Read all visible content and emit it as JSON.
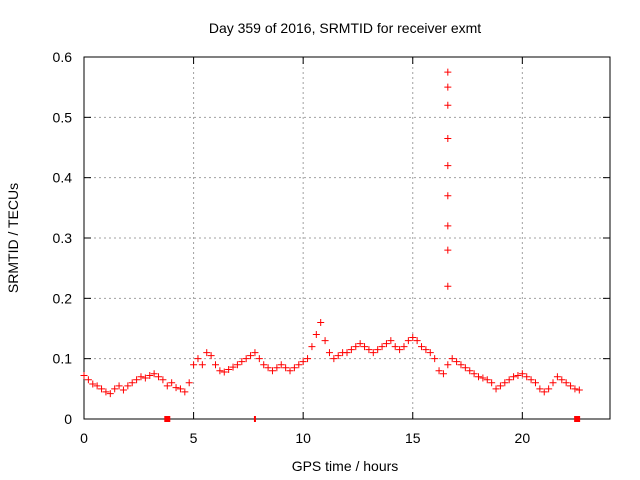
{
  "chart_data": {
    "type": "scatter",
    "title": "Day 359 of 2016, SRMTID for receiver exmt",
    "xlabel": "GPS time / hours",
    "ylabel": "SRMTID / TECUs",
    "xlim": [
      0,
      24
    ],
    "ylim": [
      0,
      0.6
    ],
    "xticks": [
      0,
      5,
      10,
      15,
      20
    ],
    "yticks": [
      0,
      0.1,
      0.2,
      0.3,
      0.4,
      0.5,
      0.6
    ],
    "grid": true,
    "marker": "+",
    "series": [
      {
        "name": "SRMTID",
        "color": "#ff0000",
        "points": [
          [
            0.0,
            0.072
          ],
          [
            0.2,
            0.065
          ],
          [
            0.4,
            0.058
          ],
          [
            0.6,
            0.055
          ],
          [
            0.8,
            0.05
          ],
          [
            1.0,
            0.045
          ],
          [
            1.2,
            0.042
          ],
          [
            1.4,
            0.05
          ],
          [
            1.6,
            0.055
          ],
          [
            1.8,
            0.048
          ],
          [
            2.0,
            0.055
          ],
          [
            2.2,
            0.06
          ],
          [
            2.4,
            0.065
          ],
          [
            2.6,
            0.07
          ],
          [
            2.8,
            0.068
          ],
          [
            3.0,
            0.072
          ],
          [
            3.2,
            0.075
          ],
          [
            3.4,
            0.07
          ],
          [
            3.6,
            0.065
          ],
          [
            3.8,
            0.055
          ],
          [
            4.0,
            0.06
          ],
          [
            4.2,
            0.052
          ],
          [
            4.4,
            0.05
          ],
          [
            4.6,
            0.045
          ],
          [
            4.8,
            0.06
          ],
          [
            5.0,
            0.09
          ],
          [
            5.2,
            0.1
          ],
          [
            5.4,
            0.09
          ],
          [
            5.6,
            0.11
          ],
          [
            5.8,
            0.105
          ],
          [
            6.0,
            0.09
          ],
          [
            6.2,
            0.08
          ],
          [
            6.4,
            0.078
          ],
          [
            6.6,
            0.082
          ],
          [
            6.8,
            0.086
          ],
          [
            7.0,
            0.09
          ],
          [
            7.2,
            0.095
          ],
          [
            7.4,
            0.1
          ],
          [
            7.6,
            0.105
          ],
          [
            7.8,
            0.11
          ],
          [
            8.0,
            0.1
          ],
          [
            8.2,
            0.09
          ],
          [
            8.4,
            0.085
          ],
          [
            8.6,
            0.08
          ],
          [
            8.8,
            0.085
          ],
          [
            9.0,
            0.09
          ],
          [
            9.2,
            0.085
          ],
          [
            9.4,
            0.08
          ],
          [
            9.6,
            0.085
          ],
          [
            9.8,
            0.09
          ],
          [
            10.0,
            0.095
          ],
          [
            10.2,
            0.1
          ],
          [
            10.4,
            0.12
          ],
          [
            10.6,
            0.14
          ],
          [
            10.8,
            0.16
          ],
          [
            11.0,
            0.13
          ],
          [
            11.2,
            0.11
          ],
          [
            11.4,
            0.1
          ],
          [
            11.6,
            0.105
          ],
          [
            11.8,
            0.11
          ],
          [
            12.0,
            0.11
          ],
          [
            12.2,
            0.115
          ],
          [
            12.4,
            0.12
          ],
          [
            12.6,
            0.125
          ],
          [
            12.8,
            0.12
          ],
          [
            13.0,
            0.115
          ],
          [
            13.2,
            0.11
          ],
          [
            13.4,
            0.115
          ],
          [
            13.6,
            0.12
          ],
          [
            13.8,
            0.125
          ],
          [
            14.0,
            0.13
          ],
          [
            14.2,
            0.12
          ],
          [
            14.4,
            0.115
          ],
          [
            14.6,
            0.12
          ],
          [
            14.8,
            0.13
          ],
          [
            15.0,
            0.135
          ],
          [
            15.2,
            0.13
          ],
          [
            15.4,
            0.12
          ],
          [
            15.6,
            0.115
          ],
          [
            15.8,
            0.11
          ],
          [
            16.0,
            0.1
          ],
          [
            16.2,
            0.08
          ],
          [
            16.4,
            0.075
          ],
          [
            16.6,
            0.09
          ],
          [
            16.6,
            0.22
          ],
          [
            16.6,
            0.28
          ],
          [
            16.6,
            0.32
          ],
          [
            16.6,
            0.37
          ],
          [
            16.6,
            0.42
          ],
          [
            16.6,
            0.465
          ],
          [
            16.6,
            0.52
          ],
          [
            16.6,
            0.55
          ],
          [
            16.6,
            0.575
          ],
          [
            16.8,
            0.1
          ],
          [
            17.0,
            0.095
          ],
          [
            17.2,
            0.09
          ],
          [
            17.4,
            0.085
          ],
          [
            17.6,
            0.08
          ],
          [
            17.8,
            0.075
          ],
          [
            18.0,
            0.07
          ],
          [
            18.2,
            0.068
          ],
          [
            18.4,
            0.065
          ],
          [
            18.6,
            0.06
          ],
          [
            18.8,
            0.05
          ],
          [
            19.0,
            0.055
          ],
          [
            19.2,
            0.06
          ],
          [
            19.4,
            0.065
          ],
          [
            19.6,
            0.07
          ],
          [
            19.8,
            0.072
          ],
          [
            20.0,
            0.075
          ],
          [
            20.2,
            0.07
          ],
          [
            20.4,
            0.065
          ],
          [
            20.6,
            0.06
          ],
          [
            20.8,
            0.05
          ],
          [
            21.0,
            0.045
          ],
          [
            21.2,
            0.05
          ],
          [
            21.4,
            0.06
          ],
          [
            21.6,
            0.07
          ],
          [
            21.8,
            0.065
          ],
          [
            22.0,
            0.06
          ],
          [
            22.2,
            0.055
          ],
          [
            22.4,
            0.05
          ],
          [
            22.6,
            0.048
          ]
        ]
      }
    ],
    "axis_markers": [
      {
        "x": 3.8,
        "style": "filled-square",
        "color": "#ff0000"
      },
      {
        "x": 7.8,
        "style": "bar",
        "color": "#ff0000"
      },
      {
        "x": 22.5,
        "style": "filled-square",
        "color": "#ff0000"
      }
    ]
  }
}
